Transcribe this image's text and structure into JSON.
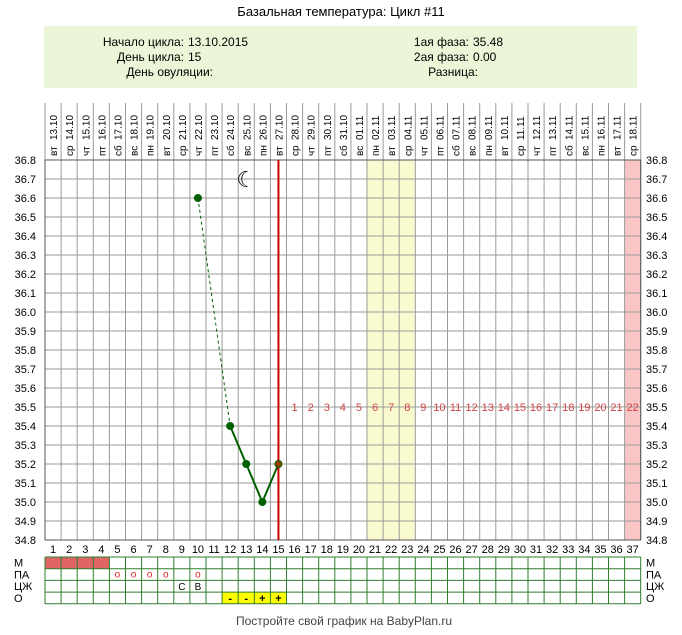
{
  "title": "Базальная температура: Цикл #11",
  "info": {
    "start_label": "Начало цикла:",
    "start_value": "13.10.2015",
    "day_label": "День цикла:",
    "day_value": "15",
    "ovulation_label": "День овуляции:",
    "ovulation_value": "",
    "phase1_label": "1ая фаза:",
    "phase1_value": "35.48",
    "phase2_label": "2ая фаза:",
    "phase2_value": "0.00",
    "diff_label": "Разница:",
    "diff_value": ""
  },
  "footer": "Постройте свой график на BabyPlan.ru",
  "colors": {
    "info_bg": "#ebf5d7",
    "grid": "#9a9a9a",
    "line": "#006000",
    "point": "#006000",
    "today_line": "#cc0000",
    "highlight_yellow": "#fafad0",
    "highlight_pink": "#f9c5c5",
    "count_text": "#cc4444",
    "menses_fill": "#e06666",
    "marker_yellow": "#ffff00"
  },
  "chart_data": {
    "type": "line",
    "ylim": [
      34.8,
      36.8
    ],
    "yticks": [
      "36.8",
      "36.7",
      "36.6",
      "36.5",
      "36.4",
      "36.3",
      "36.2",
      "36.1",
      "36.0",
      "35.9",
      "35.8",
      "35.7",
      "35.6",
      "35.5",
      "35.4",
      "35.3",
      "35.2",
      "35.1",
      "35.0",
      "34.9",
      "34.8"
    ],
    "dates": [
      "13.10",
      "14.10",
      "15.10",
      "16.10",
      "17.10",
      "18.10",
      "19.10",
      "20.10",
      "21.10",
      "22.10",
      "23.10",
      "24.10",
      "25.10",
      "26.10",
      "27.10",
      "28.10",
      "29.10",
      "30.10",
      "31.10",
      "01.11",
      "02.11",
      "03.11",
      "04.11",
      "05.11",
      "06.11",
      "07.11",
      "08.11",
      "09.11",
      "10.11",
      "11.11",
      "12.11",
      "13.11",
      "14.11",
      "15.11",
      "16.11",
      "17.11",
      "18.11"
    ],
    "weekdays": [
      "вт",
      "ср",
      "чт",
      "пт",
      "сб",
      "вс",
      "пн",
      "вт",
      "ср",
      "чт",
      "пт",
      "сб",
      "вс",
      "пн",
      "вт",
      "ср",
      "чт",
      "пт",
      "сб",
      "вс",
      "пн",
      "вт",
      "ср",
      "чт",
      "пт",
      "сб",
      "вс",
      "пн",
      "вт",
      "ср",
      "чт",
      "пт",
      "сб",
      "вс",
      "пн",
      "вт",
      "ср"
    ],
    "cycle_days": [
      "1",
      "2",
      "3",
      "4",
      "5",
      "6",
      "7",
      "8",
      "9",
      "10",
      "11",
      "12",
      "13",
      "14",
      "15",
      "16",
      "17",
      "18",
      "19",
      "20",
      "21",
      "22",
      "23",
      "24",
      "25",
      "26",
      "27",
      "28",
      "29",
      "30",
      "31",
      "32",
      "33",
      "34",
      "35",
      "36",
      "37"
    ],
    "series": [
      {
        "points": [
          {
            "day": 10,
            "temp": 36.6
          },
          {
            "day": 12,
            "temp": 35.4
          },
          {
            "day": 13,
            "temp": 35.2
          },
          {
            "day": 14,
            "temp": 35.0
          },
          {
            "day": 15,
            "temp": 35.2
          }
        ],
        "dashed_segments": [
          [
            10,
            12
          ]
        ]
      }
    ],
    "today_day": 15,
    "moon_day": 13,
    "moon_glyph": "☾",
    "highlight_yellow_days": [
      21,
      22,
      23
    ],
    "highlight_pink_days": [
      37
    ],
    "countdown": {
      "start_day": 16,
      "y_temp": 35.5,
      "labels": [
        "1",
        "2",
        "3",
        "4",
        "5",
        "6",
        "7",
        "8",
        "9",
        "10",
        "11",
        "12",
        "13",
        "14",
        "15",
        "16",
        "17",
        "18",
        "19",
        "20",
        "21",
        "22"
      ]
    },
    "rows": {
      "labels": [
        "М",
        "ПА",
        "ЦЖ",
        "О"
      ],
      "menses_days": [
        1,
        2,
        3,
        4
      ],
      "pa_marks": [
        {
          "day": 5,
          "mark": "о"
        },
        {
          "day": 6,
          "mark": "о"
        },
        {
          "day": 7,
          "mark": "о"
        },
        {
          "day": 8,
          "mark": "о"
        },
        {
          "day": 10,
          "mark": "о"
        }
      ],
      "cm_marks": [
        {
          "day": 9,
          "mark": "С"
        },
        {
          "day": 10,
          "mark": "В"
        }
      ],
      "o_marks": [
        {
          "day": 12,
          "mark": "-"
        },
        {
          "day": 13,
          "mark": "-"
        },
        {
          "day": 14,
          "mark": "+"
        },
        {
          "day": 15,
          "mark": "+"
        }
      ]
    }
  }
}
